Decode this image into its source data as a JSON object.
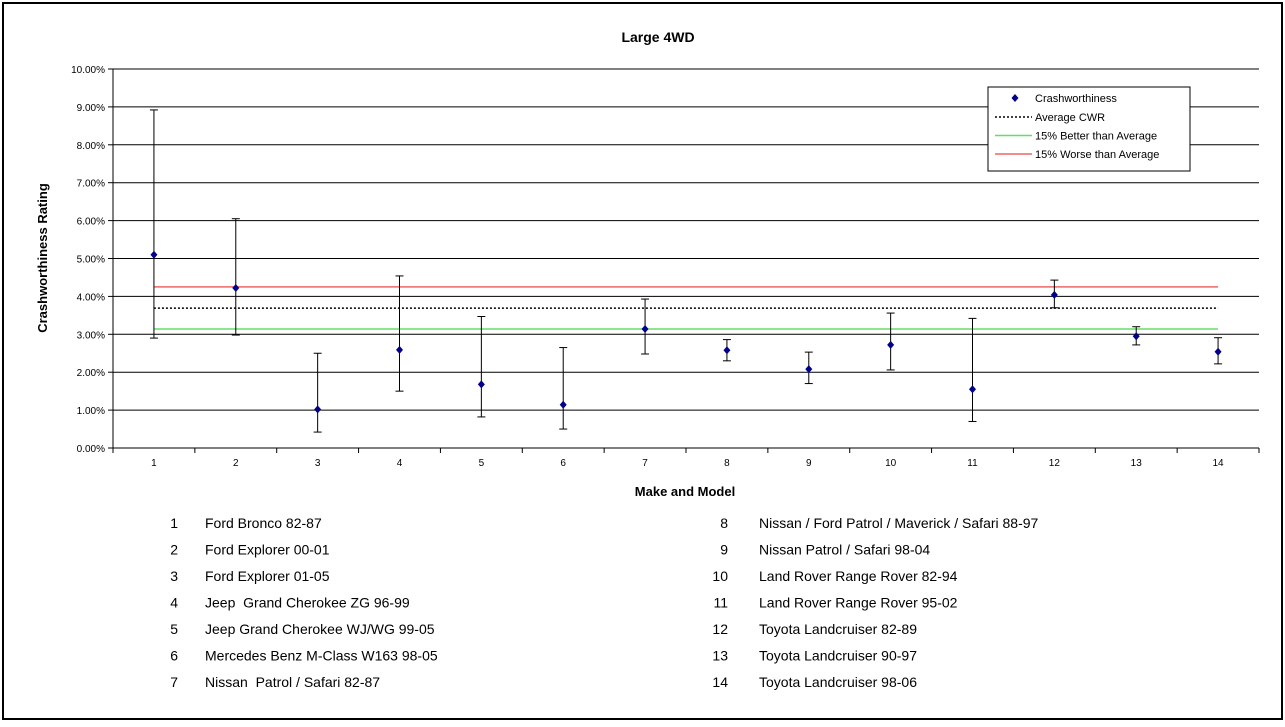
{
  "chart_data": {
    "type": "scatter",
    "title": "Large 4WD",
    "xlabel": "Make and Model",
    "ylabel": "Crashworthiness Rating",
    "categories": [
      "1",
      "2",
      "3",
      "4",
      "5",
      "6",
      "7",
      "8",
      "9",
      "10",
      "11",
      "12",
      "13",
      "14"
    ],
    "ylim": [
      0,
      0.1
    ],
    "y_ticks": [
      "0.00%",
      "1.00%",
      "2.00%",
      "3.00%",
      "4.00%",
      "5.00%",
      "6.00%",
      "7.00%",
      "8.00%",
      "9.00%",
      "10.00%"
    ],
    "grid": true,
    "legend_position": "top-right",
    "series": [
      {
        "name": "Crashworthiness",
        "color": "#00008b",
        "values": [
          0.051,
          0.0422,
          0.0102,
          0.0259,
          0.0168,
          0.0114,
          0.0314,
          0.0258,
          0.0208,
          0.0272,
          0.0155,
          0.0404,
          0.0295,
          0.0254
        ],
        "lower": [
          0.029,
          0.0298,
          0.0042,
          0.015,
          0.0082,
          0.005,
          0.0248,
          0.023,
          0.017,
          0.0206,
          0.007,
          0.037,
          0.0272,
          0.0222
        ],
        "upper": [
          0.0892,
          0.0605,
          0.025,
          0.0454,
          0.0347,
          0.0265,
          0.0393,
          0.0286,
          0.0253,
          0.0356,
          0.0342,
          0.0443,
          0.032,
          0.0291
        ]
      }
    ],
    "reference_lines": [
      {
        "name": "Average CWR",
        "value": 0.0369,
        "color": "#000000",
        "style": "dotted"
      },
      {
        "name": "15% Better than Average",
        "value": 0.0314,
        "color": "#66dd66",
        "style": "solid"
      },
      {
        "name": "15% Worse than Average",
        "value": 0.0425,
        "color": "#ee6666",
        "style": "solid"
      }
    ]
  },
  "key": [
    {
      "num": "1",
      "name": "Ford Bronco 82-87"
    },
    {
      "num": "2",
      "name": "Ford Explorer 00-01"
    },
    {
      "num": "3",
      "name": "Ford Explorer 01-05"
    },
    {
      "num": "4",
      "name": "Jeep  Grand Cherokee ZG 96-99"
    },
    {
      "num": "5",
      "name": "Jeep Grand Cherokee WJ/WG 99-05"
    },
    {
      "num": "6",
      "name": "Mercedes Benz M-Class W163 98-05"
    },
    {
      "num": "7",
      "name": "Nissan  Patrol / Safari 82-87"
    },
    {
      "num": "8",
      "name": "Nissan / Ford Patrol / Maverick / Safari 88-97"
    },
    {
      "num": "9",
      "name": "Nissan Patrol / Safari 98-04"
    },
    {
      "num": "10",
      "name": "Land Rover Range Rover 82-94"
    },
    {
      "num": "11",
      "name": "Land Rover Range Rover 95-02"
    },
    {
      "num": "12",
      "name": "Toyota Landcruiser 82-89"
    },
    {
      "num": "13",
      "name": "Toyota Landcruiser 90-97"
    },
    {
      "num": "14",
      "name": "Toyota Landcruiser 98-06"
    }
  ]
}
